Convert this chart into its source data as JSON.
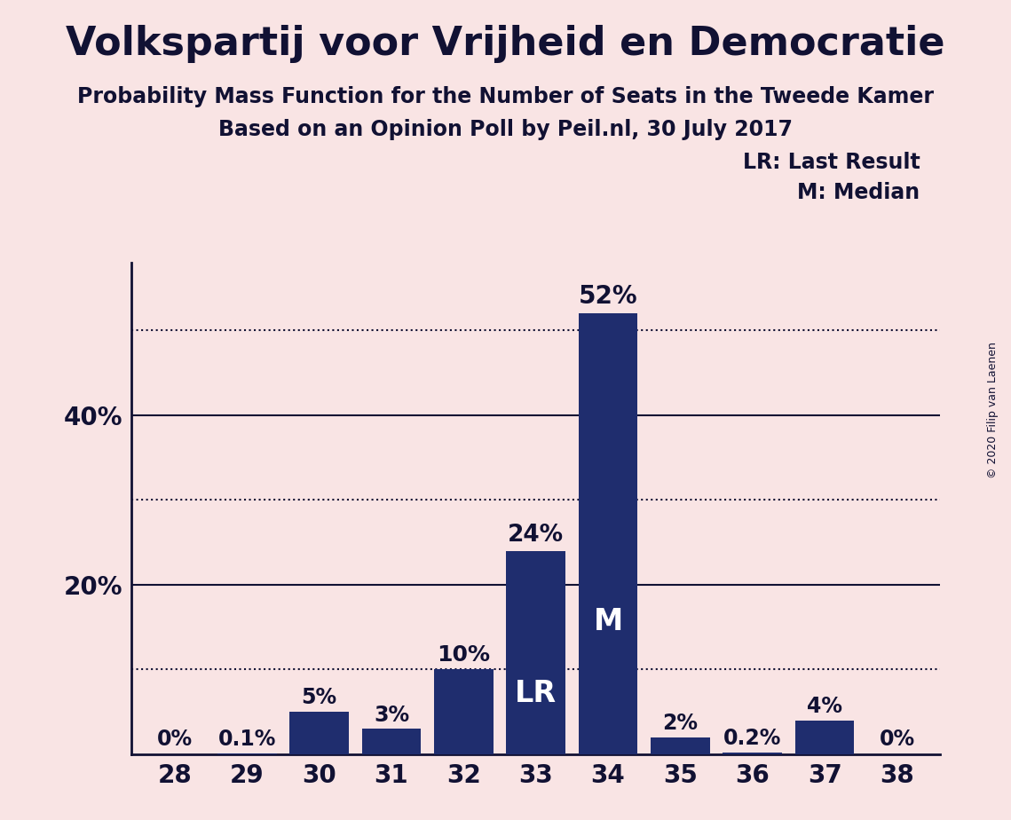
{
  "title": "Volkspartij voor Vrijheid en Democratie",
  "subtitle1": "Probability Mass Function for the Number of Seats in the Tweede Kamer",
  "subtitle2": "Based on an Opinion Poll by Peil.nl, 30 July 2017",
  "copyright": "© 2020 Filip van Laenen",
  "categories": [
    28,
    29,
    30,
    31,
    32,
    33,
    34,
    35,
    36,
    37,
    38
  ],
  "values": [
    0.0,
    0.1,
    5.0,
    3.0,
    10.0,
    24.0,
    52.0,
    2.0,
    0.2,
    4.0,
    0.0
  ],
  "labels": [
    "0%",
    "0.1%",
    "5%",
    "3%",
    "10%",
    "24%",
    "52%",
    "2%",
    "0.2%",
    "4%",
    "0%"
  ],
  "bar_color": "#1f2d6e",
  "background_color": "#f9e4e4",
  "label_inside_color": "#ffffff",
  "label_outside_color": "#111133",
  "lr_seat": 33,
  "median_seat": 34,
  "lr_label": "LR",
  "median_label": "M",
  "legend_lr": "LR: Last Result",
  "legend_m": "M: Median",
  "yticks": [
    20,
    40
  ],
  "ytick_labels": [
    "20%",
    "40%"
  ],
  "ylim": [
    0,
    58
  ],
  "dotted_lines": [
    10,
    30,
    50
  ],
  "solid_lines": [
    20,
    40
  ],
  "title_fontsize": 32,
  "subtitle_fontsize": 17,
  "label_fontsize": 17,
  "ytick_fontsize": 20,
  "xtick_fontsize": 20,
  "legend_fontsize": 17
}
